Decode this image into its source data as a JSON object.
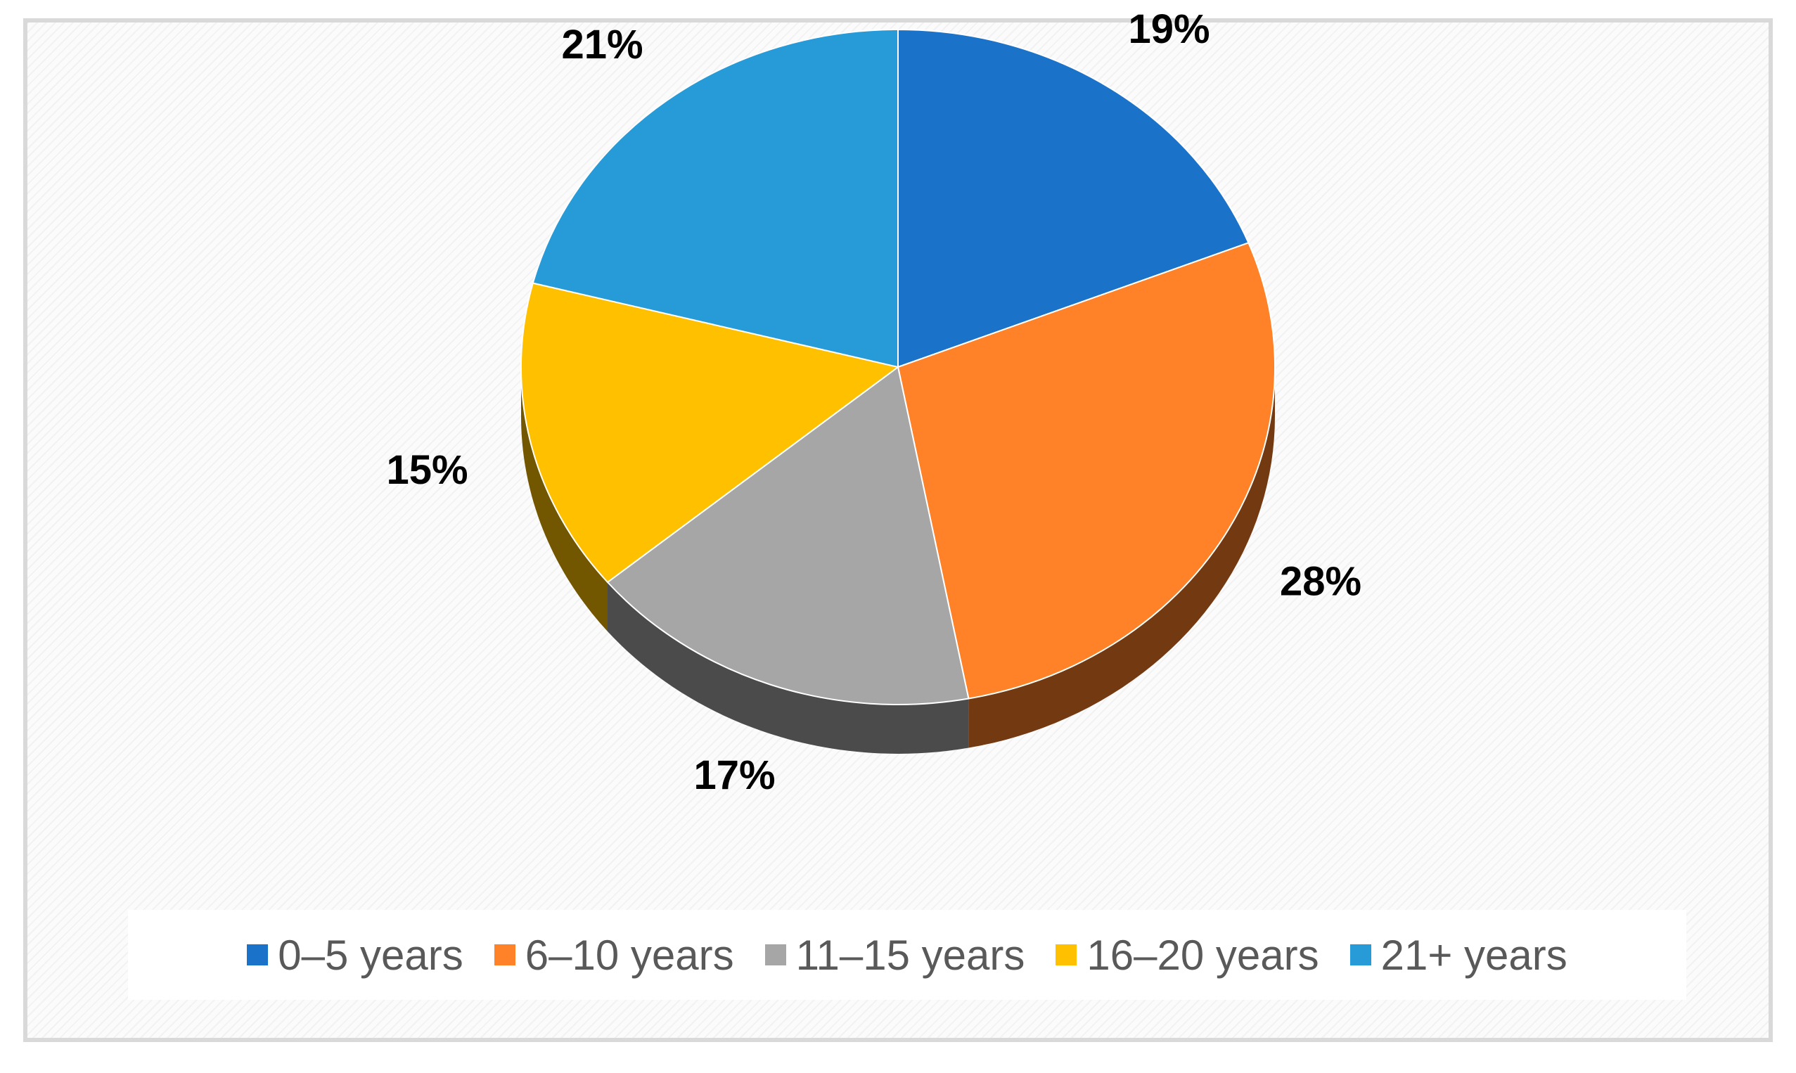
{
  "chart_data": {
    "type": "pie",
    "title": "",
    "categories": [
      "0–5 years",
      "6–10 years",
      "11–15 years",
      "16–20 years",
      "21+ years"
    ],
    "values": [
      19,
      28,
      17,
      15,
      21
    ],
    "value_labels": [
      "19%",
      "28%",
      "17%",
      "15%",
      "21%"
    ],
    "colors": [
      "#1a73c9",
      "#ff8128",
      "#a6a6a6",
      "#ffc000",
      "#279bd8"
    ],
    "legend_position": "bottom",
    "style": "3d-pie"
  },
  "legend": {
    "items": [
      {
        "label": "0–5 years",
        "color": "#1a73c9"
      },
      {
        "label": "6–10 years",
        "color": "#ff8128"
      },
      {
        "label": "11–15 years",
        "color": "#a6a6a6"
      },
      {
        "label": "16–20 years",
        "color": "#ffc000"
      },
      {
        "label": "21+ years",
        "color": "#279bd8"
      }
    ]
  }
}
